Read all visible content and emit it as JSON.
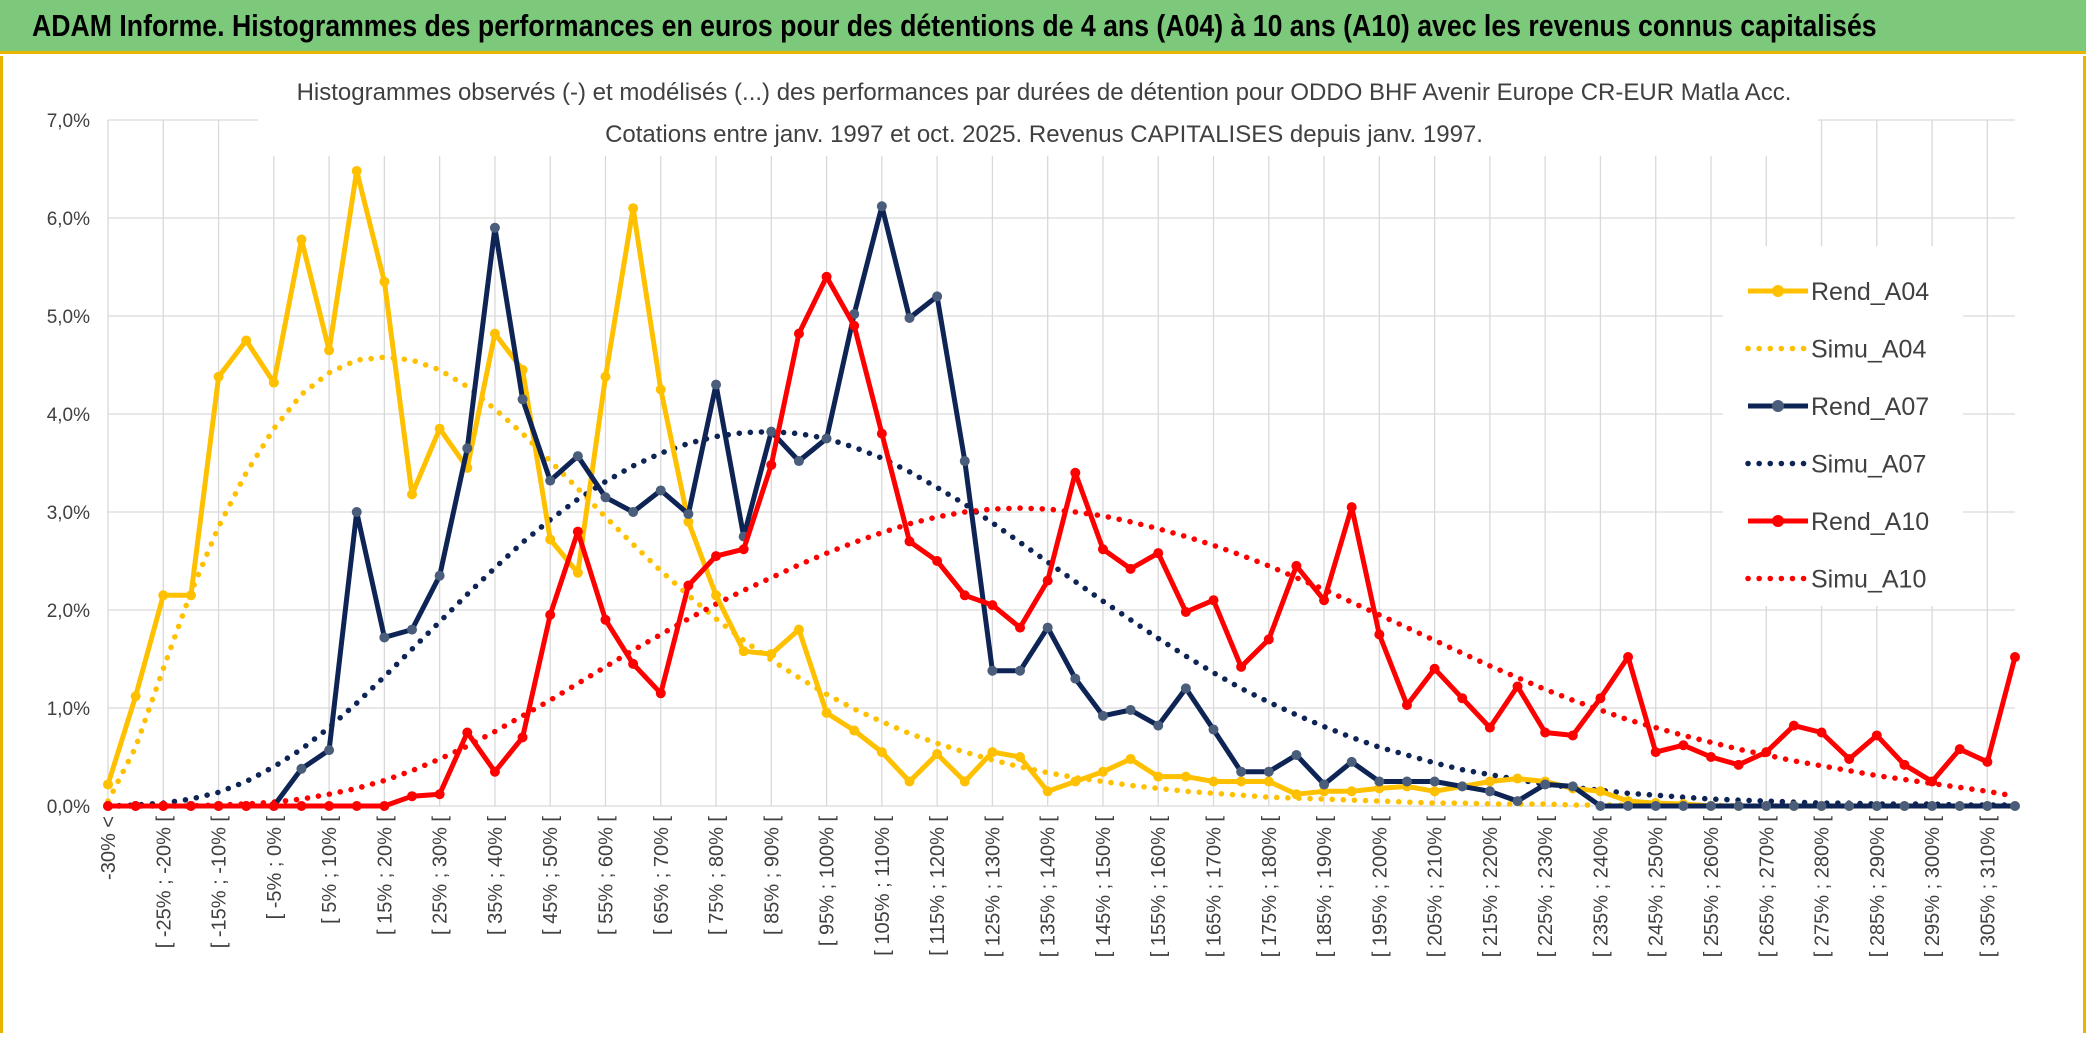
{
  "banner": {
    "title": "ADAM Informe. Histogrammes des performances en euros pour des détentions de 4 ans (A04) à 10 ans (A10) avec les revenus connus capitalisés"
  },
  "colors": {
    "banner_bg": "#7dc97b",
    "frame": "#e8b400",
    "a04": "#ffc000",
    "a07": "#0d2455",
    "a10": "#ff0000",
    "grid": "#d9d9d9"
  },
  "chart_data": {
    "type": "line",
    "title": "Histogrammes observés (-) et modélisés (...) des performances par durées de détention pour ODDO BHF Avenir Europe CR-EUR Matla Acc.",
    "subtitle": "Cotations entre janv. 1997 et oct. 2025. Revenus CAPITALISES depuis janv. 1997.",
    "ylim": [
      0,
      7
    ],
    "ytick_labels": [
      "0,0%",
      "1,0%",
      "2,0%",
      "3,0%",
      "4,0%",
      "5,0%",
      "6,0%",
      "7,0%"
    ],
    "x_tick_labels": [
      "-30% <",
      "[ -25% ; -20% [",
      "[ -15% ; -10% [",
      "[ -5% ; 0% [",
      "[ 5% ; 10% [",
      "[ 15% ; 20% [",
      "[ 25% ; 30% [",
      "[ 35% ; 40% [",
      "[ 45% ; 50% [",
      "[ 55% ; 60% [",
      "[ 65% ; 70% [",
      "[ 75% ; 80% [",
      "[ 85% ; 90% [",
      "[ 95% ; 100% [",
      "[ 105% ; 110% [",
      "[ 115% ; 120% [",
      "[ 125% ; 130% [",
      "[ 135% ; 140% [",
      "[ 145% ; 150% [",
      "[ 155% ; 160% [",
      "[ 165% ; 170% [",
      "[ 175% ; 180% [",
      "[ 185% ; 190% [",
      "[ 195% ; 200% [",
      "[ 205% ; 210% [",
      "[ 215% ; 220% [",
      "[ 225% ; 230% [",
      "[ 235% ; 240% [",
      "[ 245% ; 250% [",
      "[ 255% ; 260% [",
      "[ 265% ; 270% [",
      "[ 275% ; 280% [",
      "[ 285% ; 290% [",
      "[ 295% ; 300% [",
      "[ 305% ; 310% ["
    ],
    "n_bins": 70,
    "legend_position": "right",
    "series": [
      {
        "name": "Rend_A04",
        "style": "solid",
        "color": "#ffc000",
        "values": [
          0.22,
          1.12,
          2.15,
          2.15,
          4.38,
          4.75,
          4.32,
          5.78,
          4.65,
          6.48,
          5.35,
          3.18,
          3.85,
          3.45,
          4.82,
          4.45,
          2.72,
          2.38,
          4.38,
          6.1,
          4.25,
          2.9,
          2.15,
          1.58,
          1.55,
          1.8,
          0.95,
          0.77,
          0.55,
          0.25,
          0.53,
          0.25,
          0.55,
          0.5,
          0.15,
          0.25,
          0.35,
          0.48,
          0.3,
          0.3,
          0.25,
          0.25,
          0.25,
          0.12,
          0.15,
          0.15,
          0.18,
          0.2,
          0.15,
          0.2,
          0.25,
          0.28,
          0.25,
          0.18,
          0.15,
          0.05,
          0.03,
          0.02,
          0.0,
          0.0,
          0.0,
          0.0,
          0.0,
          0.0,
          0.0,
          0.0,
          0.0,
          0.0,
          0.0,
          0.0
        ]
      },
      {
        "name": "Simu_A04",
        "style": "dotted",
        "color": "#ffc000",
        "values": [
          0.05,
          0.6,
          1.4,
          2.18,
          2.85,
          3.4,
          3.85,
          4.2,
          4.42,
          4.55,
          4.58,
          4.55,
          4.45,
          4.28,
          4.05,
          3.8,
          3.52,
          3.24,
          2.95,
          2.67,
          2.4,
          2.15,
          1.91,
          1.69,
          1.49,
          1.31,
          1.14,
          0.99,
          0.86,
          0.74,
          0.64,
          0.55,
          0.47,
          0.4,
          0.34,
          0.29,
          0.25,
          0.21,
          0.18,
          0.15,
          0.13,
          0.11,
          0.09,
          0.08,
          0.07,
          0.06,
          0.05,
          0.04,
          0.03,
          0.03,
          0.02,
          0.02,
          0.02,
          0.01,
          0.01,
          0.01,
          0.01,
          0.01,
          0.01,
          0.0,
          0.0,
          0.0,
          0.0,
          0.0,
          0.0,
          0.0,
          0.0,
          0.0,
          0.0,
          0.0
        ]
      },
      {
        "name": "Rend_A07",
        "style": "solid",
        "color": "#0d2455",
        "values": [
          0.0,
          0.0,
          0.0,
          0.0,
          0.0,
          0.0,
          0.0,
          0.38,
          0.57,
          3.0,
          1.72,
          1.8,
          2.35,
          3.65,
          5.9,
          4.15,
          3.32,
          3.57,
          3.15,
          3.0,
          3.22,
          2.98,
          4.3,
          2.75,
          3.82,
          3.52,
          3.75,
          5.02,
          6.12,
          4.98,
          5.2,
          3.52,
          1.38,
          1.38,
          1.82,
          1.3,
          0.92,
          0.98,
          0.82,
          1.2,
          0.78,
          0.35,
          0.35,
          0.52,
          0.22,
          0.45,
          0.25,
          0.25,
          0.25,
          0.2,
          0.15,
          0.05,
          0.22,
          0.2,
          0.0,
          0.0,
          0.0,
          0.0,
          0.0,
          0.0,
          0.0,
          0.0,
          0.0,
          0.0,
          0.0,
          0.0,
          0.0,
          0.0,
          0.0,
          0.0
        ]
      },
      {
        "name": "Simu_A07",
        "style": "dotted",
        "color": "#0d2455",
        "values": [
          0.0,
          0.01,
          0.03,
          0.07,
          0.14,
          0.25,
          0.4,
          0.58,
          0.8,
          1.05,
          1.32,
          1.6,
          1.88,
          2.16,
          2.43,
          2.69,
          2.92,
          3.13,
          3.31,
          3.47,
          3.6,
          3.7,
          3.77,
          3.81,
          3.82,
          3.8,
          3.75,
          3.66,
          3.55,
          3.41,
          3.25,
          3.08,
          2.89,
          2.69,
          2.49,
          2.29,
          2.09,
          1.9,
          1.71,
          1.53,
          1.36,
          1.2,
          1.06,
          0.93,
          0.81,
          0.7,
          0.6,
          0.52,
          0.44,
          0.37,
          0.32,
          0.27,
          0.22,
          0.19,
          0.16,
          0.13,
          0.11,
          0.09,
          0.07,
          0.06,
          0.05,
          0.04,
          0.03,
          0.03,
          0.02,
          0.02,
          0.02,
          0.01,
          0.01,
          0.01
        ]
      },
      {
        "name": "Rend_A10",
        "style": "solid",
        "color": "#ff0000",
        "values": [
          0.0,
          0.0,
          0.0,
          0.0,
          0.0,
          0.0,
          0.0,
          0.0,
          0.0,
          0.0,
          0.0,
          0.1,
          0.12,
          0.75,
          0.35,
          0.7,
          1.95,
          2.8,
          1.9,
          1.45,
          1.15,
          2.25,
          2.55,
          2.62,
          3.48,
          4.82,
          5.4,
          4.9,
          3.8,
          2.7,
          2.5,
          2.15,
          2.05,
          1.82,
          2.3,
          3.4,
          2.62,
          2.42,
          2.58,
          1.98,
          2.1,
          1.42,
          1.7,
          2.45,
          2.1,
          3.05,
          1.75,
          1.03,
          1.4,
          1.1,
          0.8,
          1.22,
          0.75,
          0.72,
          1.1,
          1.52,
          0.55,
          0.62,
          0.5,
          0.42,
          0.55,
          0.82,
          0.75,
          0.48,
          0.72,
          0.42,
          0.25,
          0.58,
          0.45,
          1.52
        ]
      },
      {
        "name": "Simu_A10",
        "style": "dotted",
        "color": "#ff0000",
        "values": [
          0.0,
          0.0,
          0.0,
          0.0,
          0.01,
          0.02,
          0.04,
          0.07,
          0.12,
          0.18,
          0.26,
          0.36,
          0.48,
          0.61,
          0.76,
          0.92,
          1.08,
          1.25,
          1.42,
          1.59,
          1.75,
          1.91,
          2.06,
          2.2,
          2.33,
          2.46,
          2.58,
          2.69,
          2.79,
          2.88,
          2.95,
          3.0,
          3.03,
          3.04,
          3.03,
          3.0,
          2.96,
          2.9,
          2.83,
          2.75,
          2.66,
          2.56,
          2.45,
          2.33,
          2.21,
          2.08,
          1.95,
          1.82,
          1.69,
          1.56,
          1.43,
          1.31,
          1.19,
          1.08,
          0.98,
          0.88,
          0.8,
          0.72,
          0.65,
          0.58,
          0.52,
          0.46,
          0.41,
          0.36,
          0.31,
          0.27,
          0.23,
          0.19,
          0.15,
          0.1
        ]
      }
    ]
  }
}
